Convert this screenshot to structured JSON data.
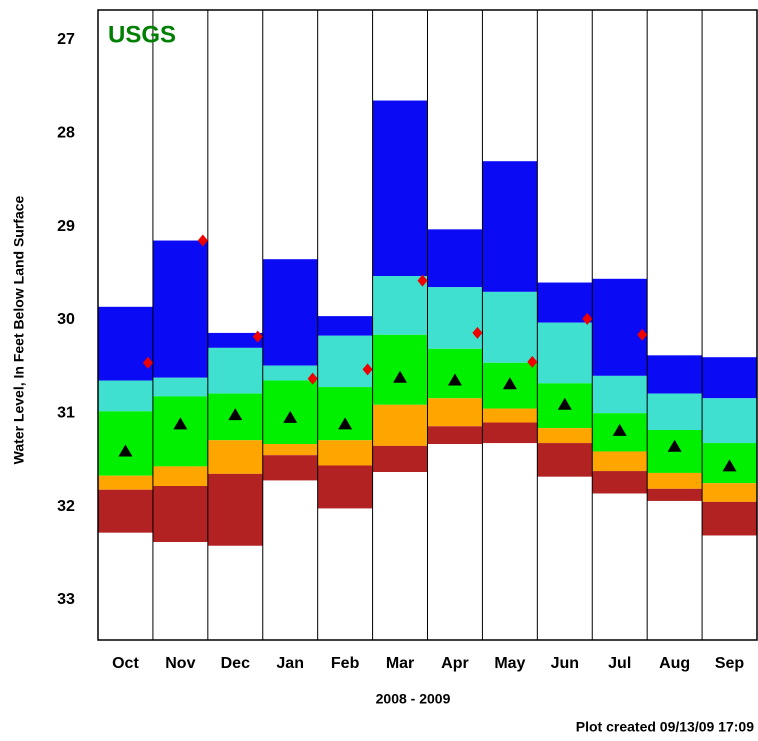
{
  "chart_data": {
    "type": "percentile-band",
    "title": "USGS",
    "y_label": "Water Level, In Feet Below Land Surface",
    "x_label": "2008 - 2009",
    "footer": "Plot created 09/13/09 17:09",
    "categories": [
      "Oct",
      "Nov",
      "Dec",
      "Jan",
      "Feb",
      "Mar",
      "Apr",
      "May",
      "Jun",
      "Jul",
      "Aug",
      "Sep"
    ],
    "levels": [
      [
        29.86,
        29.15,
        30.14,
        29.35,
        29.96,
        27.65,
        29.03,
        28.3,
        29.6,
        29.56,
        30.38,
        30.4
      ],
      [
        30.65,
        30.62,
        30.3,
        30.49,
        30.17,
        29.53,
        29.65,
        29.7,
        30.03,
        30.6,
        30.79,
        30.84
      ],
      [
        30.98,
        30.82,
        30.79,
        30.65,
        30.72,
        30.16,
        30.31,
        30.46,
        30.68,
        31.0,
        31.18,
        31.32
      ],
      [
        31.67,
        31.57,
        31.29,
        31.33,
        31.29,
        30.91,
        30.84,
        30.95,
        31.16,
        31.41,
        31.64,
        31.75
      ],
      [
        31.82,
        31.78,
        31.65,
        31.45,
        31.56,
        31.35,
        31.14,
        31.1,
        31.32,
        31.62,
        31.81,
        31.95
      ],
      [
        32.28,
        32.38,
        32.42,
        31.72,
        32.02,
        31.63,
        31.33,
        31.32,
        31.68,
        31.86,
        31.94,
        32.31
      ]
    ],
    "band_colors": [
      "#0a0af5",
      "#40e0d0",
      "#00f000",
      "#ffa500",
      "#b22222"
    ],
    "median": [
      31.41,
      31.12,
      31.02,
      31.05,
      31.12,
      30.62,
      30.65,
      30.69,
      30.91,
      31.19,
      31.36,
      31.57
    ],
    "median_color": "#000000",
    "current": [
      30.46,
      29.15,
      30.18,
      30.63,
      30.53,
      29.58,
      30.14,
      30.45,
      29.99,
      30.16,
      null,
      null
    ],
    "current_color": "#ee0000",
    "title_color": "#008000",
    "ylim": [
      26.68,
      33.43
    ],
    "y_inverted": true,
    "yticks": [
      27,
      28,
      29,
      30,
      31,
      32,
      33
    ]
  }
}
